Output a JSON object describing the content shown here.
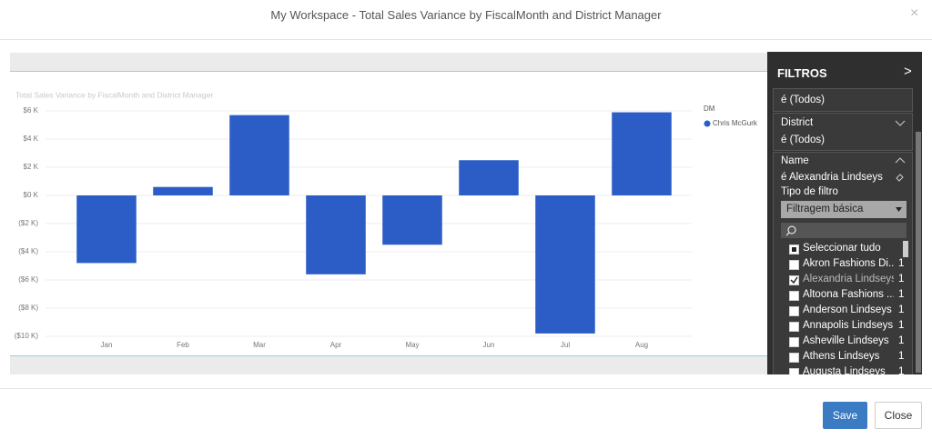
{
  "dialog": {
    "title": "My Workspace - Total Sales Variance by FiscalMonth and District Manager",
    "close_icon": "×",
    "buttons": [
      "Save",
      "Close"
    ]
  },
  "chart_data": {
    "type": "bar",
    "title": "Total Sales Variance by FiscalMonth and District Manager",
    "categories": [
      "Jan",
      "Feb",
      "Mar",
      "Apr",
      "May",
      "Jun",
      "Jul",
      "Aug"
    ],
    "series": [
      {
        "name": "Chris McGurk",
        "color": "#2c5cc5",
        "values": [
          -4.8,
          0.6,
          5.7,
          -5.6,
          -3.5,
          2.5,
          -9.8,
          5.9
        ]
      }
    ],
    "legend_title": "DM",
    "legend": "top-right",
    "ylim": [
      -10.2,
      6.4
    ],
    "yticks": [
      {
        "value": 6,
        "label": "$6 K"
      },
      {
        "value": 4,
        "label": "$4 K"
      },
      {
        "value": 2,
        "label": "$2 K"
      },
      {
        "value": 0,
        "label": "$0 K"
      },
      {
        "value": -2,
        "label": "($2 K)"
      },
      {
        "value": -4,
        "label": "($4 K)"
      },
      {
        "value": -6,
        "label": "($6 K)"
      },
      {
        "value": -8,
        "label": "($8 K)"
      },
      {
        "value": -10,
        "label": "($10 K)"
      }
    ],
    "grid": true
  },
  "filters": {
    "title": "FILTROS",
    "expand_icon": ">",
    "cards": [
      {
        "condition": "é (Todos)"
      },
      {
        "field": "District",
        "condition": "é (Todos)"
      }
    ],
    "name_card": {
      "field": "Name",
      "condition": "é Alexandria Lindseys",
      "filter_type_label": "Tipo de filtro",
      "filter_type": "Filtragem básica",
      "select_all": "Seleccionar tudo",
      "items": [
        {
          "label": "Akron Fashions Di...",
          "count": 1,
          "checked": false
        },
        {
          "label": "Alexandria Lindseys",
          "count": 1,
          "checked": true
        },
        {
          "label": "Altoona Fashions ...",
          "count": 1,
          "checked": false
        },
        {
          "label": "Anderson Lindseys",
          "count": 1,
          "checked": false
        },
        {
          "label": "Annapolis Lindseys",
          "count": 1,
          "checked": false
        },
        {
          "label": "Asheville Lindseys",
          "count": 1,
          "checked": false
        },
        {
          "label": "Athens Lindseys",
          "count": 1,
          "checked": false
        },
        {
          "label": "Augusta Lindseys",
          "count": 1,
          "checked": false
        }
      ]
    }
  }
}
